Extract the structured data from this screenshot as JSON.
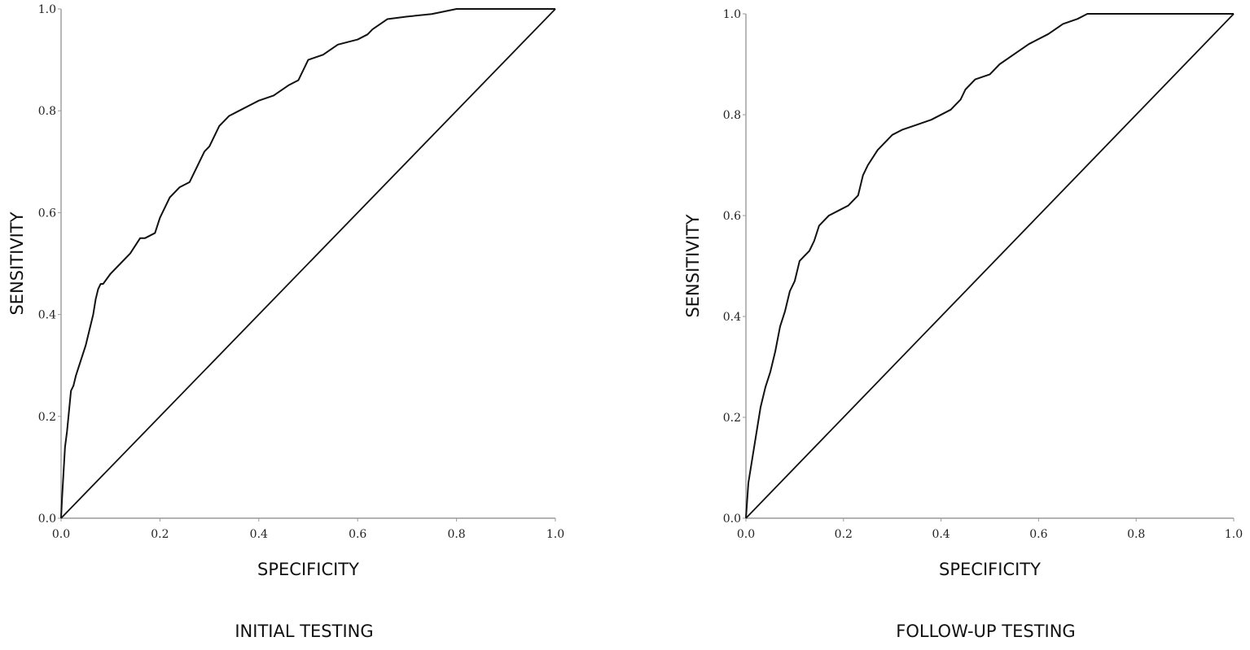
{
  "chart_data": [
    {
      "type": "line",
      "caption": "INITIAL TESTING",
      "xlabel": "SPECIFICITY",
      "ylabel": "SENSITIVITY",
      "xlim": [
        0.0,
        1.0
      ],
      "ylim": [
        0.0,
        1.0
      ],
      "x_ticks": [
        "0.0",
        "0.2",
        "0.4",
        "0.6",
        "0.8",
        "1.0"
      ],
      "y_ticks": [
        "0.0",
        "0.2",
        "0.4",
        "0.6",
        "0.8",
        "1.0"
      ],
      "grid": false,
      "legend": "none",
      "series": [
        {
          "x": [
            0.0,
            0.002,
            0.005,
            0.008,
            0.012,
            0.015,
            0.02,
            0.025,
            0.03,
            0.04,
            0.05,
            0.055,
            0.06,
            0.065,
            0.07,
            0.075,
            0.08,
            0.085,
            0.1,
            0.12,
            0.14,
            0.16,
            0.17,
            0.19,
            0.2,
            0.22,
            0.24,
            0.26,
            0.27,
            0.29,
            0.3,
            0.32,
            0.34,
            0.36,
            0.4,
            0.43,
            0.46,
            0.48,
            0.5,
            0.53,
            0.56,
            0.6,
            0.62,
            0.63,
            0.66,
            0.7,
            0.75,
            0.8,
            1.0
          ],
          "y": [
            0.0,
            0.04,
            0.09,
            0.14,
            0.17,
            0.2,
            0.25,
            0.26,
            0.28,
            0.31,
            0.34,
            0.36,
            0.38,
            0.4,
            0.43,
            0.45,
            0.46,
            0.46,
            0.48,
            0.5,
            0.52,
            0.55,
            0.55,
            0.56,
            0.59,
            0.63,
            0.65,
            0.66,
            0.68,
            0.72,
            0.73,
            0.77,
            0.79,
            0.8,
            0.82,
            0.83,
            0.85,
            0.86,
            0.9,
            0.91,
            0.93,
            0.94,
            0.95,
            0.96,
            0.98,
            0.985,
            0.99,
            1.0,
            1.0
          ]
        },
        {
          "x": [
            0.0,
            1.0
          ],
          "y": [
            0.0,
            1.0
          ]
        }
      ]
    },
    {
      "type": "line",
      "caption": "FOLLOW-UP TESTING",
      "xlabel": "SPECIFICITY",
      "ylabel": "SENSITIVITY",
      "xlim": [
        0.0,
        1.0
      ],
      "ylim": [
        0.0,
        1.0
      ],
      "x_ticks": [
        "0.0",
        "0.2",
        "0.4",
        "0.6",
        "0.8",
        "1.0"
      ],
      "y_ticks": [
        "0.0",
        "0.2",
        "0.4",
        "0.6",
        "0.8",
        "1.0"
      ],
      "grid": false,
      "legend": "none",
      "series": [
        {
          "x": [
            0.0,
            0.005,
            0.01,
            0.015,
            0.02,
            0.025,
            0.03,
            0.04,
            0.05,
            0.06,
            0.07,
            0.08,
            0.09,
            0.1,
            0.11,
            0.12,
            0.13,
            0.14,
            0.15,
            0.17,
            0.19,
            0.21,
            0.23,
            0.24,
            0.25,
            0.27,
            0.3,
            0.32,
            0.35,
            0.38,
            0.42,
            0.44,
            0.45,
            0.47,
            0.5,
            0.52,
            0.55,
            0.58,
            0.62,
            0.65,
            0.68,
            0.7,
            0.8,
            1.0
          ],
          "y": [
            0.0,
            0.07,
            0.1,
            0.13,
            0.16,
            0.19,
            0.22,
            0.26,
            0.29,
            0.33,
            0.38,
            0.41,
            0.45,
            0.47,
            0.51,
            0.52,
            0.53,
            0.55,
            0.58,
            0.6,
            0.61,
            0.62,
            0.64,
            0.68,
            0.7,
            0.73,
            0.76,
            0.77,
            0.78,
            0.79,
            0.81,
            0.83,
            0.85,
            0.87,
            0.88,
            0.9,
            0.92,
            0.94,
            0.96,
            0.98,
            0.99,
            1.0,
            1.0,
            1.0
          ]
        },
        {
          "x": [
            0.0,
            1.0
          ],
          "y": [
            0.0,
            1.0
          ]
        }
      ]
    }
  ]
}
